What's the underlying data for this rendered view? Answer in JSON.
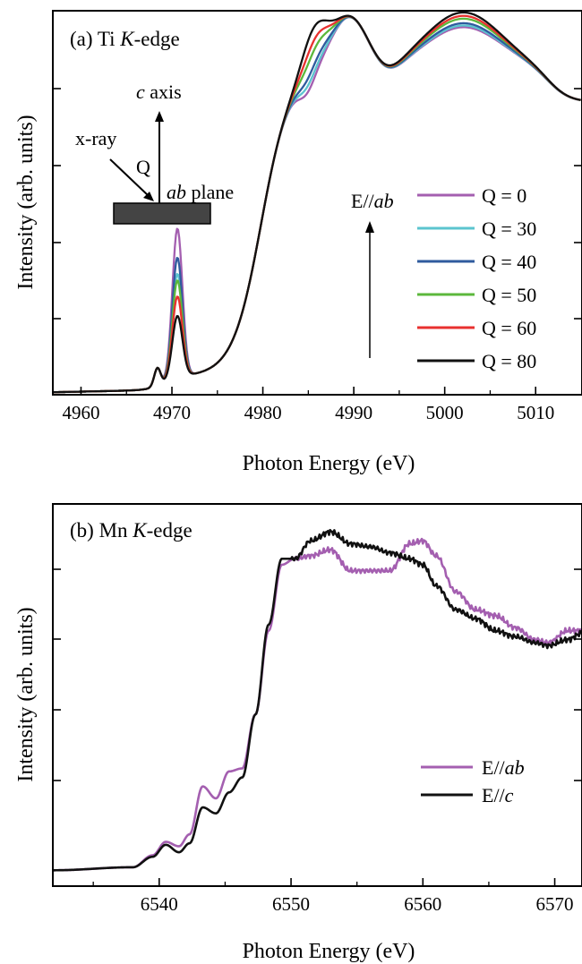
{
  "chart_data": [
    {
      "type": "line",
      "panel_label": "(a)",
      "title_main": "Ti ",
      "title_italic": "K",
      "title_rest": "-edge",
      "xlabel": "Photon Energy (eV)",
      "ylabel": "Intensity (arb. units)",
      "xlim": [
        4957,
        5015
      ],
      "ylim": [
        0,
        1.18
      ],
      "xticks": [
        4960,
        4970,
        4980,
        4990,
        5000,
        5010
      ],
      "y_tick_labels_shown": false,
      "legend_position": "right",
      "annotations": {
        "polarization_main": "E//",
        "polarization_italic": "ab",
        "inset_axis_italic": "c",
        "inset_axis_rest": " axis",
        "inset_xray": "x-ray",
        "inset_q": "Q",
        "inset_plane_italic": "ab",
        "inset_plane_rest": " plane"
      },
      "series": [
        {
          "name": "Q = 0",
          "color": "#a45fb0",
          "peak": 0.46,
          "shoulder": 0.0,
          "dip": 1.0
        },
        {
          "name": "Q = 30",
          "color": "#5bc4cf",
          "peak": 0.32,
          "shoulder": 0.015,
          "dip": 0.85
        },
        {
          "name": "Q = 40",
          "color": "#2f5b9e",
          "peak": 0.37,
          "shoulder": 0.035,
          "dip": 0.75
        },
        {
          "name": "Q = 50",
          "color": "#5cb83c",
          "peak": 0.3,
          "shoulder": 0.075,
          "dip": 0.55
        },
        {
          "name": "Q = 60",
          "color": "#e8312f",
          "peak": 0.25,
          "shoulder": 0.1,
          "dip": 0.35
        },
        {
          "name": "Q = 80",
          "color": "#111111",
          "peak": 0.19,
          "shoulder": 0.13,
          "dip": 0.0
        }
      ]
    },
    {
      "type": "line",
      "panel_label": "(b)",
      "title_main": "Mn ",
      "title_italic": "K",
      "title_rest": "-edge",
      "xlabel": "Photon Energy (eV)",
      "ylabel": "Intensity (arb. units)",
      "xlim": [
        6532,
        6572
      ],
      "ylim": [
        -0.05,
        1.22
      ],
      "xticks": [
        6540,
        6550,
        6560,
        6570
      ],
      "y_tick_labels_shown": false,
      "legend_position": "bottom-right",
      "series": [
        {
          "name_main": "E//",
          "name_italic": "ab",
          "color": "#a45fb0",
          "x": [
            6532,
            6538,
            6539.5,
            6540.5,
            6541.5,
            6542.3,
            6543.3,
            6544.3,
            6545.3,
            6546.3,
            6547.3,
            6548.3,
            6549.3,
            6550.3,
            6551.5,
            6553,
            6554.5,
            6556,
            6557.5,
            6559,
            6560,
            6561,
            6562.5,
            6564,
            6565.5,
            6567,
            6568.5,
            6569.5,
            6571,
            6572
          ],
          "y": [
            0.0,
            0.01,
            0.05,
            0.095,
            0.08,
            0.12,
            0.28,
            0.24,
            0.33,
            0.34,
            0.52,
            0.8,
            1.02,
            1.04,
            1.05,
            1.07,
            1.0,
            1.0,
            1.0,
            1.09,
            1.1,
            1.05,
            0.93,
            0.87,
            0.85,
            0.81,
            0.77,
            0.76,
            0.8,
            0.8
          ]
        },
        {
          "name_main": "E//",
          "name_italic": "c",
          "color": "#111111",
          "x": [
            6532,
            6538,
            6539.5,
            6540.5,
            6541.5,
            6542.3,
            6543.3,
            6544.3,
            6545.3,
            6546.3,
            6547.3,
            6548.3,
            6549.3,
            6550.3,
            6551.5,
            6553,
            6554.5,
            6556,
            6557.5,
            6559,
            6560,
            6561,
            6562.5,
            6564,
            6565.5,
            6567,
            6568.5,
            6569.5,
            6571,
            6572
          ],
          "y": [
            0.0,
            0.01,
            0.045,
            0.085,
            0.06,
            0.09,
            0.21,
            0.19,
            0.26,
            0.31,
            0.52,
            0.82,
            1.04,
            1.04,
            1.1,
            1.13,
            1.09,
            1.08,
            1.06,
            1.04,
            1.02,
            0.95,
            0.87,
            0.84,
            0.8,
            0.78,
            0.76,
            0.75,
            0.77,
            0.79
          ]
        }
      ]
    }
  ]
}
